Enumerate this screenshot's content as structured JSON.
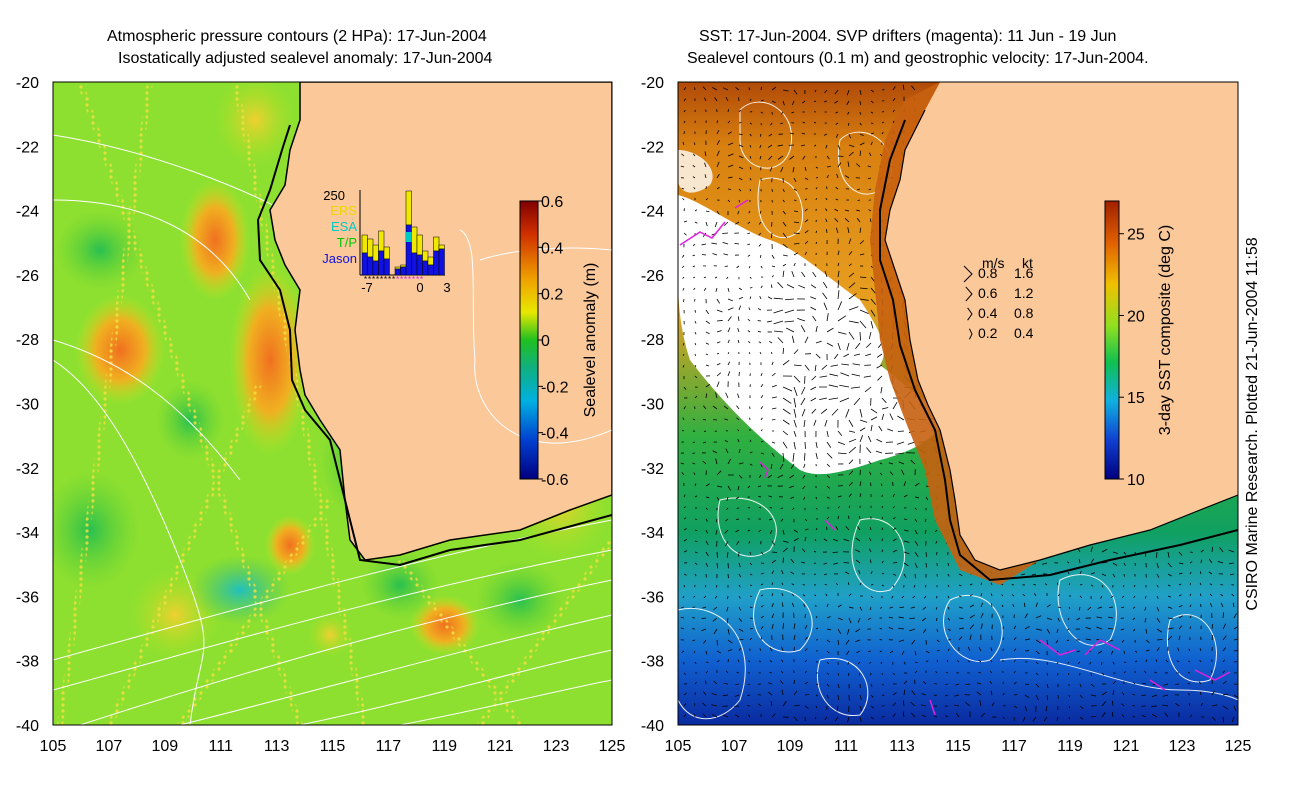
{
  "left_panel": {
    "title_line1": "Atmospheric pressure contours (2 HPa): 17-Jun-2004",
    "title_line2": "Isostatically adjusted sealevel anomaly: 17-Jun-2004",
    "y_ticks": [
      "-20",
      "-22",
      "-24",
      "-26",
      "-28",
      "-30",
      "-32",
      "-34",
      "-36",
      "-38",
      "-40"
    ],
    "x_ticks": [
      "105",
      "107",
      "109",
      "111",
      "113",
      "115",
      "117",
      "119",
      "121",
      "123",
      "125"
    ],
    "colorbar": {
      "label": "Sealevel anomaly (m)",
      "ticks": [
        "0.6",
        "0.4",
        "0.2",
        "0",
        "-0.2",
        "-0.4",
        "-0.6"
      ],
      "range": [
        -0.6,
        0.6
      ]
    },
    "inset": {
      "y_top_label": "250",
      "legend": [
        "ERS",
        "ESA",
        "T/P",
        "Jason"
      ],
      "x_ticks": [
        "-7",
        "0",
        "3"
      ],
      "legend_colors": [
        "#e6d800",
        "#00c8c8",
        "#00c800",
        "#1010e0"
      ]
    }
  },
  "right_panel": {
    "title_line1": "SST: 17-Jun-2004. SVP drifters (magenta): 11 Jun - 19 Jun",
    "title_line2": "Sealevel contours (0.1 m) and geostrophic velocity: 17-Jun-2004.",
    "y_ticks": [
      "-20",
      "-22",
      "-24",
      "-26",
      "-28",
      "-30",
      "-32",
      "-34",
      "-36",
      "-38",
      "-40"
    ],
    "x_ticks": [
      "105",
      "107",
      "109",
      "111",
      "113",
      "115",
      "117",
      "119",
      "121",
      "123",
      "125"
    ],
    "colorbar": {
      "label": "3-day SST composite (deg C)",
      "ticks": [
        "25",
        "20",
        "15",
        "10"
      ],
      "range": [
        10,
        27
      ]
    },
    "velocity_key": {
      "header_ms": "m/s",
      "header_kt": "kt",
      "rows": [
        {
          "ms": "0.8",
          "kt": "1.6"
        },
        {
          "ms": "0.6",
          "kt": "1.2"
        },
        {
          "ms": "0.4",
          "kt": "0.8"
        },
        {
          "ms": "0.2",
          "kt": "0.4"
        }
      ]
    }
  },
  "credit": "CSIRO Marine Research. Plotted 21-Jun-2004 11:58",
  "colors": {
    "land": "#fbc89a",
    "sla_green": "#80e020",
    "sst_orange": "#e08810",
    "cloud": "#ffffff"
  }
}
